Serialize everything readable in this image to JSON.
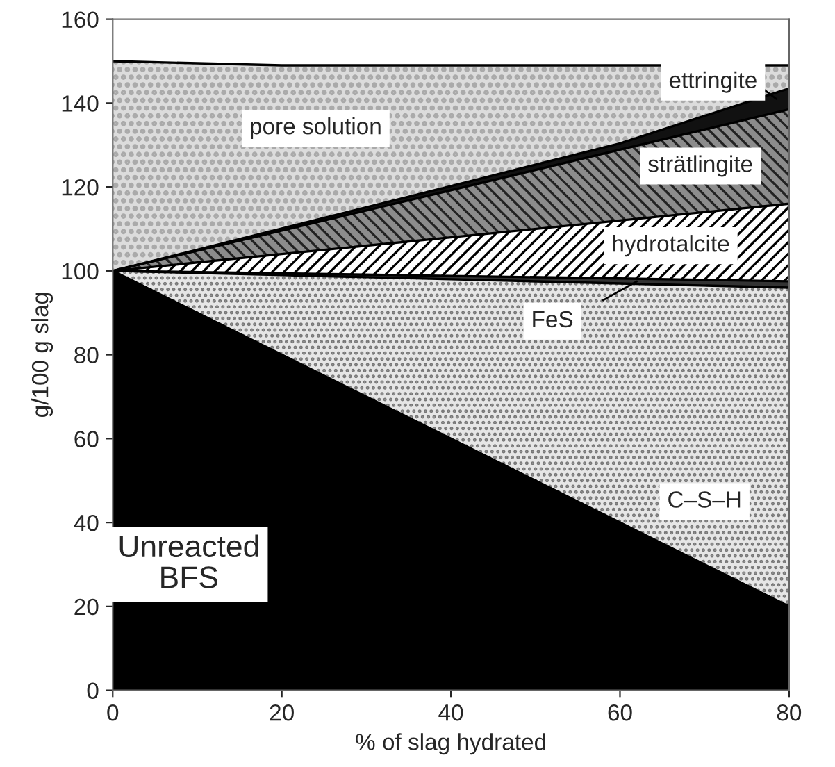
{
  "chart_data": {
    "type": "area",
    "stacked": true,
    "xlabel": "% of slag hydrated",
    "ylabel": "g/100 g slag",
    "x": [
      0,
      20,
      40,
      60,
      80
    ],
    "series": [
      {
        "name": "Unreacted\nBFS",
        "color": "#000000",
        "values": [
          100,
          80,
          60,
          40,
          20
        ]
      },
      {
        "name": "C–S–H",
        "color": "#e6e6e6",
        "values": [
          0,
          19,
          38,
          57,
          76
        ]
      },
      {
        "name": "FeS",
        "color": "#333333",
        "values": [
          0,
          0.4,
          0.8,
          1.2,
          1.5
        ]
      },
      {
        "name": "hydrotalcite",
        "color": "#ffffff",
        "values": [
          0,
          4.6,
          9.2,
          13.8,
          18.5
        ]
      },
      {
        "name": "strätlingite",
        "color": "#8c8c8c",
        "values": [
          0,
          5.6,
          11.2,
          16.9,
          22.5
        ]
      },
      {
        "name": "ettringite",
        "color": "#111111",
        "values": [
          0,
          0.5,
          1,
          1.5,
          5
        ]
      },
      {
        "name": "pore solution",
        "color": "#dcdcdc",
        "values": [
          50,
          38.9,
          28.8,
          18.6,
          5.5
        ]
      }
    ],
    "xlim": [
      0,
      80
    ],
    "xticks": [
      0,
      20,
      40,
      60,
      80
    ],
    "ylim": [
      0,
      160
    ],
    "yticks": [
      0,
      20,
      40,
      60,
      80,
      100,
      120,
      140,
      160
    ],
    "grid": false
  }
}
